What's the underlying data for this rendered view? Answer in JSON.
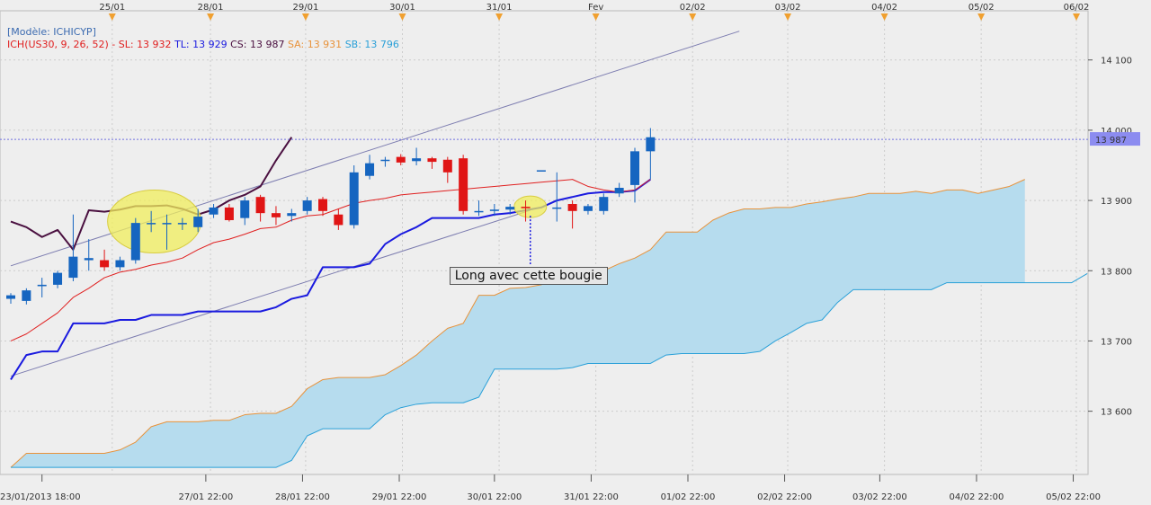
{
  "chart_data": {
    "type": "candlestick",
    "model_label": "[Modèle: ICHICYP]",
    "indicator": {
      "prefix": "ICH(US30, 9, 26, 52) -",
      "items": [
        {
          "label": "SL: 13 932",
          "color": "#e02020"
        },
        {
          "label": "TL: 13 929",
          "color": "#1a1adf"
        },
        {
          "label": "CS: 13 987",
          "color": "#4a1040"
        },
        {
          "label": "SA: 13 931",
          "color": "#e8923a"
        },
        {
          "label": "SB: 13 796",
          "color": "#2aa0d8"
        }
      ]
    },
    "yaxis": {
      "min": 13510,
      "max": 14170,
      "ticks": [
        13600,
        13700,
        13800,
        13900,
        14000,
        14100
      ],
      "tick_labels": [
        "13 600",
        "13 700",
        "13 800",
        "13 900",
        "14 000",
        "14 100"
      ]
    },
    "last_price": {
      "value": 13987,
      "label": "13 987"
    },
    "top_dates": [
      {
        "label": "25/01",
        "bar": 6.5
      },
      {
        "label": "28/01",
        "bar": 12.8
      },
      {
        "label": "29/01",
        "bar": 18.9
      },
      {
        "label": "30/01",
        "bar": 25.1
      },
      {
        "label": "31/01",
        "bar": 31.3
      },
      {
        "label": "Fev",
        "bar": 37.5
      },
      {
        "label": "02/02",
        "bar": 43.7
      },
      {
        "label": "03/02",
        "bar": 49.8
      },
      {
        "label": "04/02",
        "bar": 56.0
      },
      {
        "label": "05/02",
        "bar": 62.2
      },
      {
        "label": "06/02",
        "bar": 68.3
      }
    ],
    "bottom_dates": [
      {
        "label": "23/01/2013 18:00",
        "bar": 2.0
      },
      {
        "label": "27/01 22:00",
        "bar": 12.5
      },
      {
        "label": "28/01 22:00",
        "bar": 18.7
      },
      {
        "label": "29/01 22:00",
        "bar": 24.9
      },
      {
        "label": "30/01 22:00",
        "bar": 31.0
      },
      {
        "label": "31/01 22:00",
        "bar": 37.2
      },
      {
        "label": "01/02 22:00",
        "bar": 43.4
      },
      {
        "label": "02/02 22:00",
        "bar": 49.6
      },
      {
        "label": "03/02 22:00",
        "bar": 55.7
      },
      {
        "label": "04/02 22:00",
        "bar": 61.9
      },
      {
        "label": "05/02 22:00",
        "bar": 68.1
      }
    ],
    "candles": [
      {
        "o": 13760,
        "h": 13768,
        "l": 13753,
        "c": 13765
      },
      {
        "o": 13757,
        "h": 13775,
        "l": 13752,
        "c": 13772
      },
      {
        "o": 13778,
        "h": 13790,
        "l": 13762,
        "c": 13780
      },
      {
        "o": 13780,
        "h": 13800,
        "l": 13775,
        "c": 13797
      },
      {
        "o": 13790,
        "h": 13880,
        "l": 13785,
        "c": 13820
      },
      {
        "o": 13815,
        "h": 13845,
        "l": 13800,
        "c": 13818
      },
      {
        "o": 13815,
        "h": 13830,
        "l": 13800,
        "c": 13805
      },
      {
        "o": 13805,
        "h": 13820,
        "l": 13800,
        "c": 13815
      },
      {
        "o": 13815,
        "h": 13875,
        "l": 13810,
        "c": 13868
      },
      {
        "o": 13868,
        "h": 13885,
        "l": 13855,
        "c": 13868
      },
      {
        "o": 13868,
        "h": 13880,
        "l": 13830,
        "c": 13868
      },
      {
        "o": 13868,
        "h": 13875,
        "l": 13858,
        "c": 13868
      },
      {
        "o": 13862,
        "h": 13888,
        "l": 13855,
        "c": 13877
      },
      {
        "o": 13880,
        "h": 13895,
        "l": 13875,
        "c": 13890
      },
      {
        "o": 13890,
        "h": 13895,
        "l": 13870,
        "c": 13872
      },
      {
        "o": 13875,
        "h": 13905,
        "l": 13865,
        "c": 13900
      },
      {
        "o": 13905,
        "h": 13908,
        "l": 13870,
        "c": 13882
      },
      {
        "o": 13882,
        "h": 13892,
        "l": 13865,
        "c": 13876
      },
      {
        "o": 13878,
        "h": 13888,
        "l": 13870,
        "c": 13882
      },
      {
        "o": 13885,
        "h": 13905,
        "l": 13880,
        "c": 13900
      },
      {
        "o": 13902,
        "h": 13905,
        "l": 13878,
        "c": 13885
      },
      {
        "o": 13880,
        "h": 13888,
        "l": 13858,
        "c": 13865
      },
      {
        "o": 13865,
        "h": 13950,
        "l": 13860,
        "c": 13940
      },
      {
        "o": 13935,
        "h": 13965,
        "l": 13930,
        "c": 13953
      },
      {
        "o": 13958,
        "h": 13962,
        "l": 13948,
        "c": 13958
      },
      {
        "o": 13962,
        "h": 13966,
        "l": 13950,
        "c": 13954
      },
      {
        "o": 13956,
        "h": 13975,
        "l": 13950,
        "c": 13960
      },
      {
        "o": 13960,
        "h": 13962,
        "l": 13945,
        "c": 13955
      },
      {
        "o": 13958,
        "h": 13962,
        "l": 13925,
        "c": 13940
      },
      {
        "o": 13960,
        "h": 13965,
        "l": 13880,
        "c": 13885
      },
      {
        "o": 13885,
        "h": 13900,
        "l": 13878,
        "c": 13885
      },
      {
        "o": 13885,
        "h": 13895,
        "l": 13878,
        "c": 13887
      },
      {
        "o": 13887,
        "h": 13895,
        "l": 13880,
        "c": 13891
      },
      {
        "o": 13891,
        "h": 13900,
        "l": 13870,
        "c": 13889
      },
      {
        "o": 13943,
        "h": 13943,
        "l": 13943,
        "c": 13943
      },
      {
        "o": 13890,
        "h": 13940,
        "l": 13870,
        "c": 13890
      },
      {
        "o": 13895,
        "h": 13900,
        "l": 13860,
        "c": 13885
      },
      {
        "o": 13885,
        "h": 13895,
        "l": 13880,
        "c": 13892
      },
      {
        "o": 13885,
        "h": 13910,
        "l": 13880,
        "c": 13905
      },
      {
        "o": 13910,
        "h": 13925,
        "l": 13905,
        "c": 13918
      },
      {
        "o": 13922,
        "h": 13975,
        "l": 13897,
        "c": 13970
      },
      {
        "o": 13970,
        "h": 14003,
        "l": 13930,
        "c": 13990
      }
    ],
    "tenkan": [
      13700,
      13710,
      13725,
      13740,
      13762,
      13775,
      13790,
      13798,
      13802,
      13808,
      13812,
      13818,
      13830,
      13840,
      13845,
      13852,
      13860,
      13862,
      13872,
      13878,
      13880,
      13888,
      13896,
      13900,
      13903,
      13908,
      13910,
      13912,
      13914,
      13916,
      13918,
      13920,
      13922,
      13924,
      13926,
      13928,
      13930,
      13920,
      13915,
      13912,
      13915,
      13930
    ],
    "kijun": [
      13645,
      13680,
      13685,
      13685,
      13725,
      13725,
      13725,
      13730,
      13730,
      13737,
      13737,
      13737,
      13742,
      13742,
      13742,
      13742,
      13742,
      13748,
      13760,
      13765,
      13805,
      13805,
      13805,
      13810,
      13838,
      13852,
      13862,
      13875,
      13875,
      13875,
      13875,
      13880,
      13882,
      13886,
      13890,
      13900,
      13905,
      13910,
      13912,
      13912,
      13914,
      13930
    ],
    "chikou": [
      13870,
      13862,
      13848,
      13858,
      13830,
      13886,
      13884,
      13887,
      13892,
      13892,
      13893,
      13888,
      13880,
      13887,
      13900,
      13908,
      13920,
      13957,
      13990
    ],
    "senkou_a": [
      13520,
      13540,
      13540,
      13540,
      13540,
      13540,
      13540,
      13545,
      13556,
      13578,
      13585,
      13585,
      13585,
      13587,
      13587,
      13595,
      13597,
      13597,
      13607,
      13632,
      13645,
      13648,
      13648,
      13648,
      13652,
      13665,
      13680,
      13700,
      13718,
      13725,
      13765,
      13765,
      13775,
      13776,
      13780,
      13790,
      13790,
      13796,
      13800,
      13810,
      13818,
      13830,
      13855,
      13855,
      13855,
      13872,
      13882,
      13888,
      13888,
      13890,
      13890,
      13895,
      13898,
      13902,
      13905,
      13910,
      13910,
      13910,
      13913,
      13910,
      13915,
      13915,
      13910,
      13915,
      13920,
      13930
    ],
    "senkou_b": [
      13520,
      13520,
      13520,
      13520,
      13520,
      13520,
      13520,
      13520,
      13520,
      13520,
      13520,
      13520,
      13520,
      13520,
      13520,
      13520,
      13520,
      13520,
      13530,
      13565,
      13575,
      13575,
      13575,
      13575,
      13595,
      13605,
      13610,
      13612,
      13612,
      13612,
      13620,
      13660,
      13660,
      13660,
      13660,
      13660,
      13662,
      13668,
      13668,
      13668,
      13668,
      13668,
      13680,
      13682,
      13682,
      13682,
      13682,
      13682,
      13685,
      13700,
      13712,
      13725,
      13730,
      13755,
      13773,
      13773,
      13773,
      13773,
      13773,
      13773,
      13783,
      13783,
      13783,
      13783,
      13783,
      13783,
      13783,
      13783,
      13783,
      13796
    ],
    "trendline_upper": {
      "from": {
        "bar": 0,
        "value": 13807
      },
      "to": {
        "bar": 46.7,
        "value": 14141
      }
    },
    "trendline_lower": {
      "from": {
        "bar": 0,
        "value": 13650
      },
      "to": {
        "bar": 33.3,
        "value": 13886
      }
    },
    "highlights": [
      {
        "bar": 9.2,
        "value": 13870
      },
      {
        "bar": 33.3,
        "value": 13891
      }
    ],
    "annotation": {
      "text": "Long avec cette bougie",
      "bar": 33.3,
      "value": 13891
    }
  }
}
